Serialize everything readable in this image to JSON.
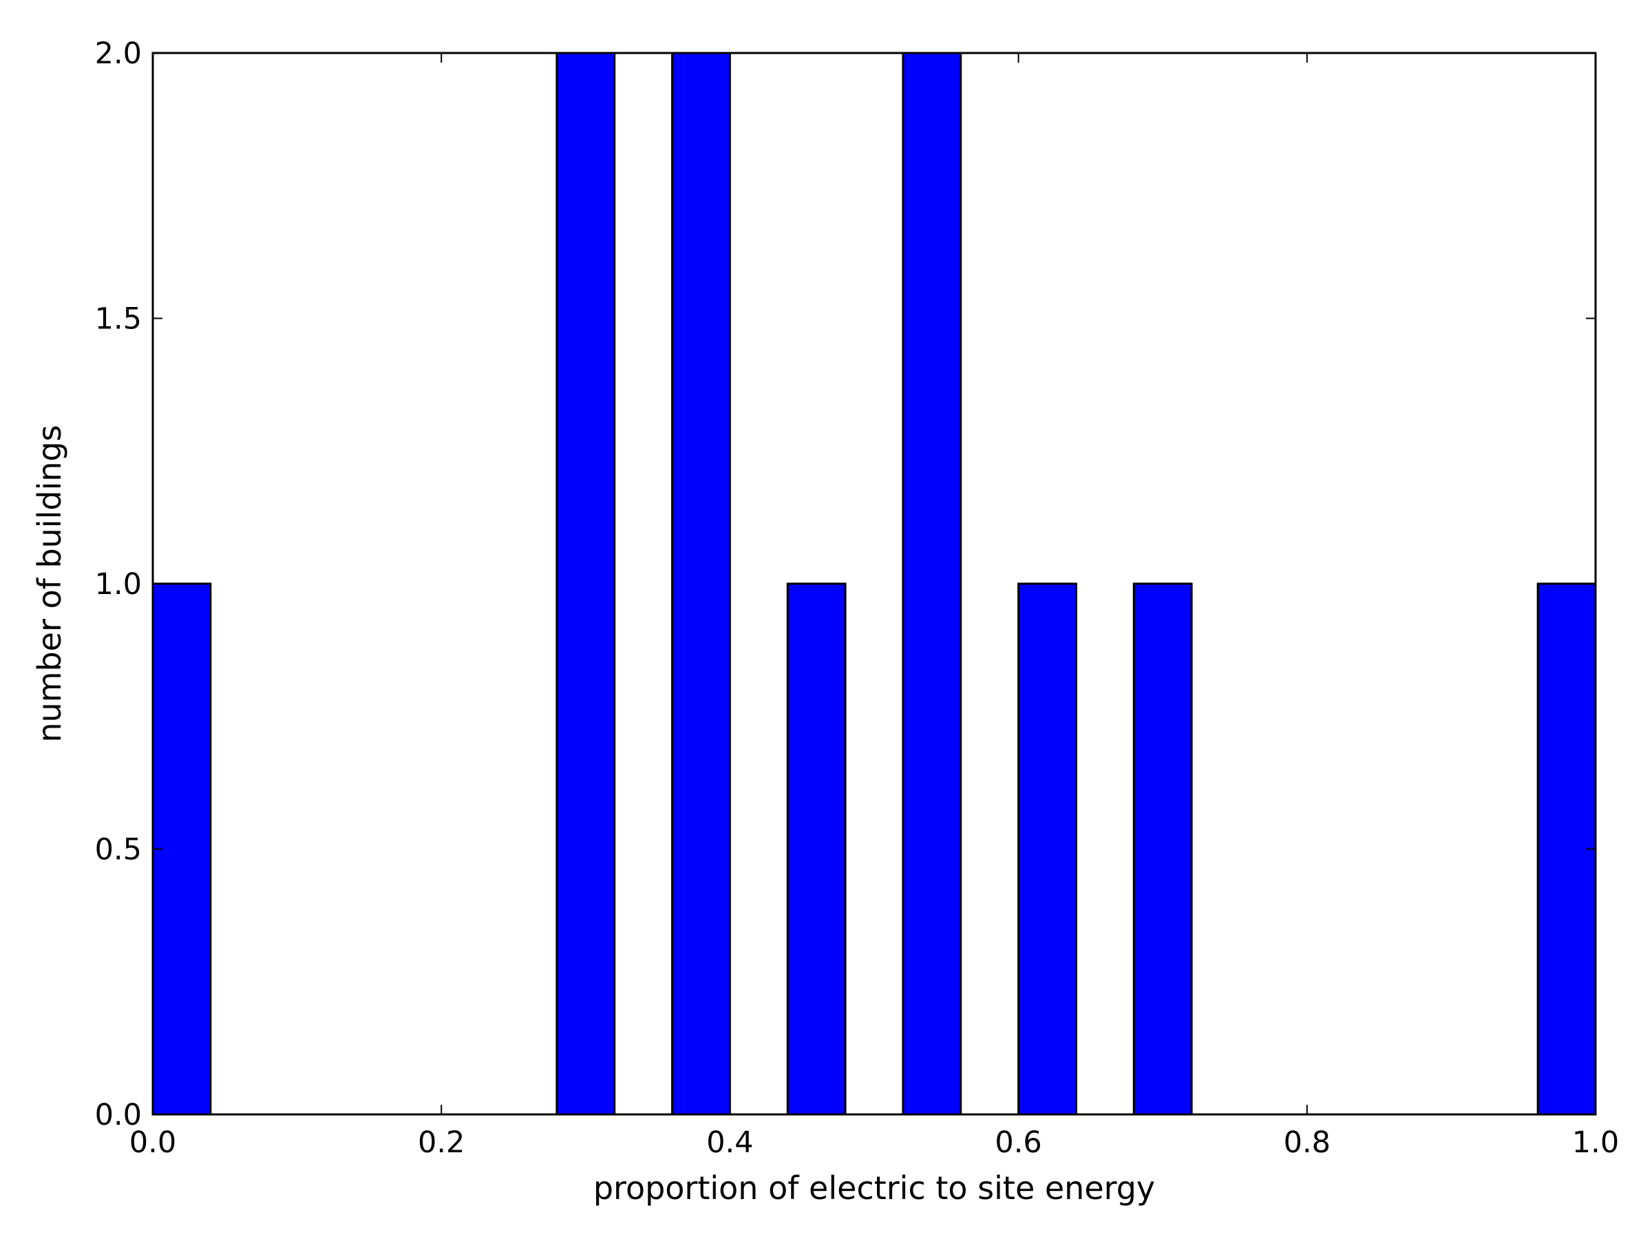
{
  "chart_data": {
    "type": "bar",
    "bars": [
      {
        "x0": 0.0,
        "x1": 0.04,
        "value": 1
      },
      {
        "x0": 0.28,
        "x1": 0.32,
        "value": 2
      },
      {
        "x0": 0.36,
        "x1": 0.4,
        "value": 2
      },
      {
        "x0": 0.44,
        "x1": 0.48,
        "value": 1
      },
      {
        "x0": 0.52,
        "x1": 0.56,
        "value": 2
      },
      {
        "x0": 0.6,
        "x1": 0.64,
        "value": 1
      },
      {
        "x0": 0.68,
        "x1": 0.72,
        "value": 1
      },
      {
        "x0": 0.96,
        "x1": 1.0,
        "value": 1
      }
    ],
    "xlabel": "proportion of electric to site energy",
    "ylabel": "number of buildings",
    "xlim": [
      0.0,
      1.0
    ],
    "ylim": [
      0.0,
      2.0
    ],
    "xticks": [
      "0.0",
      "0.2",
      "0.4",
      "0.6",
      "0.8",
      "1.0"
    ],
    "yticks": [
      "0.0",
      "0.5",
      "1.0",
      "1.5",
      "2.0"
    ],
    "bar_color": "#0000ff",
    "edge_color": "#000000",
    "grid": false
  }
}
